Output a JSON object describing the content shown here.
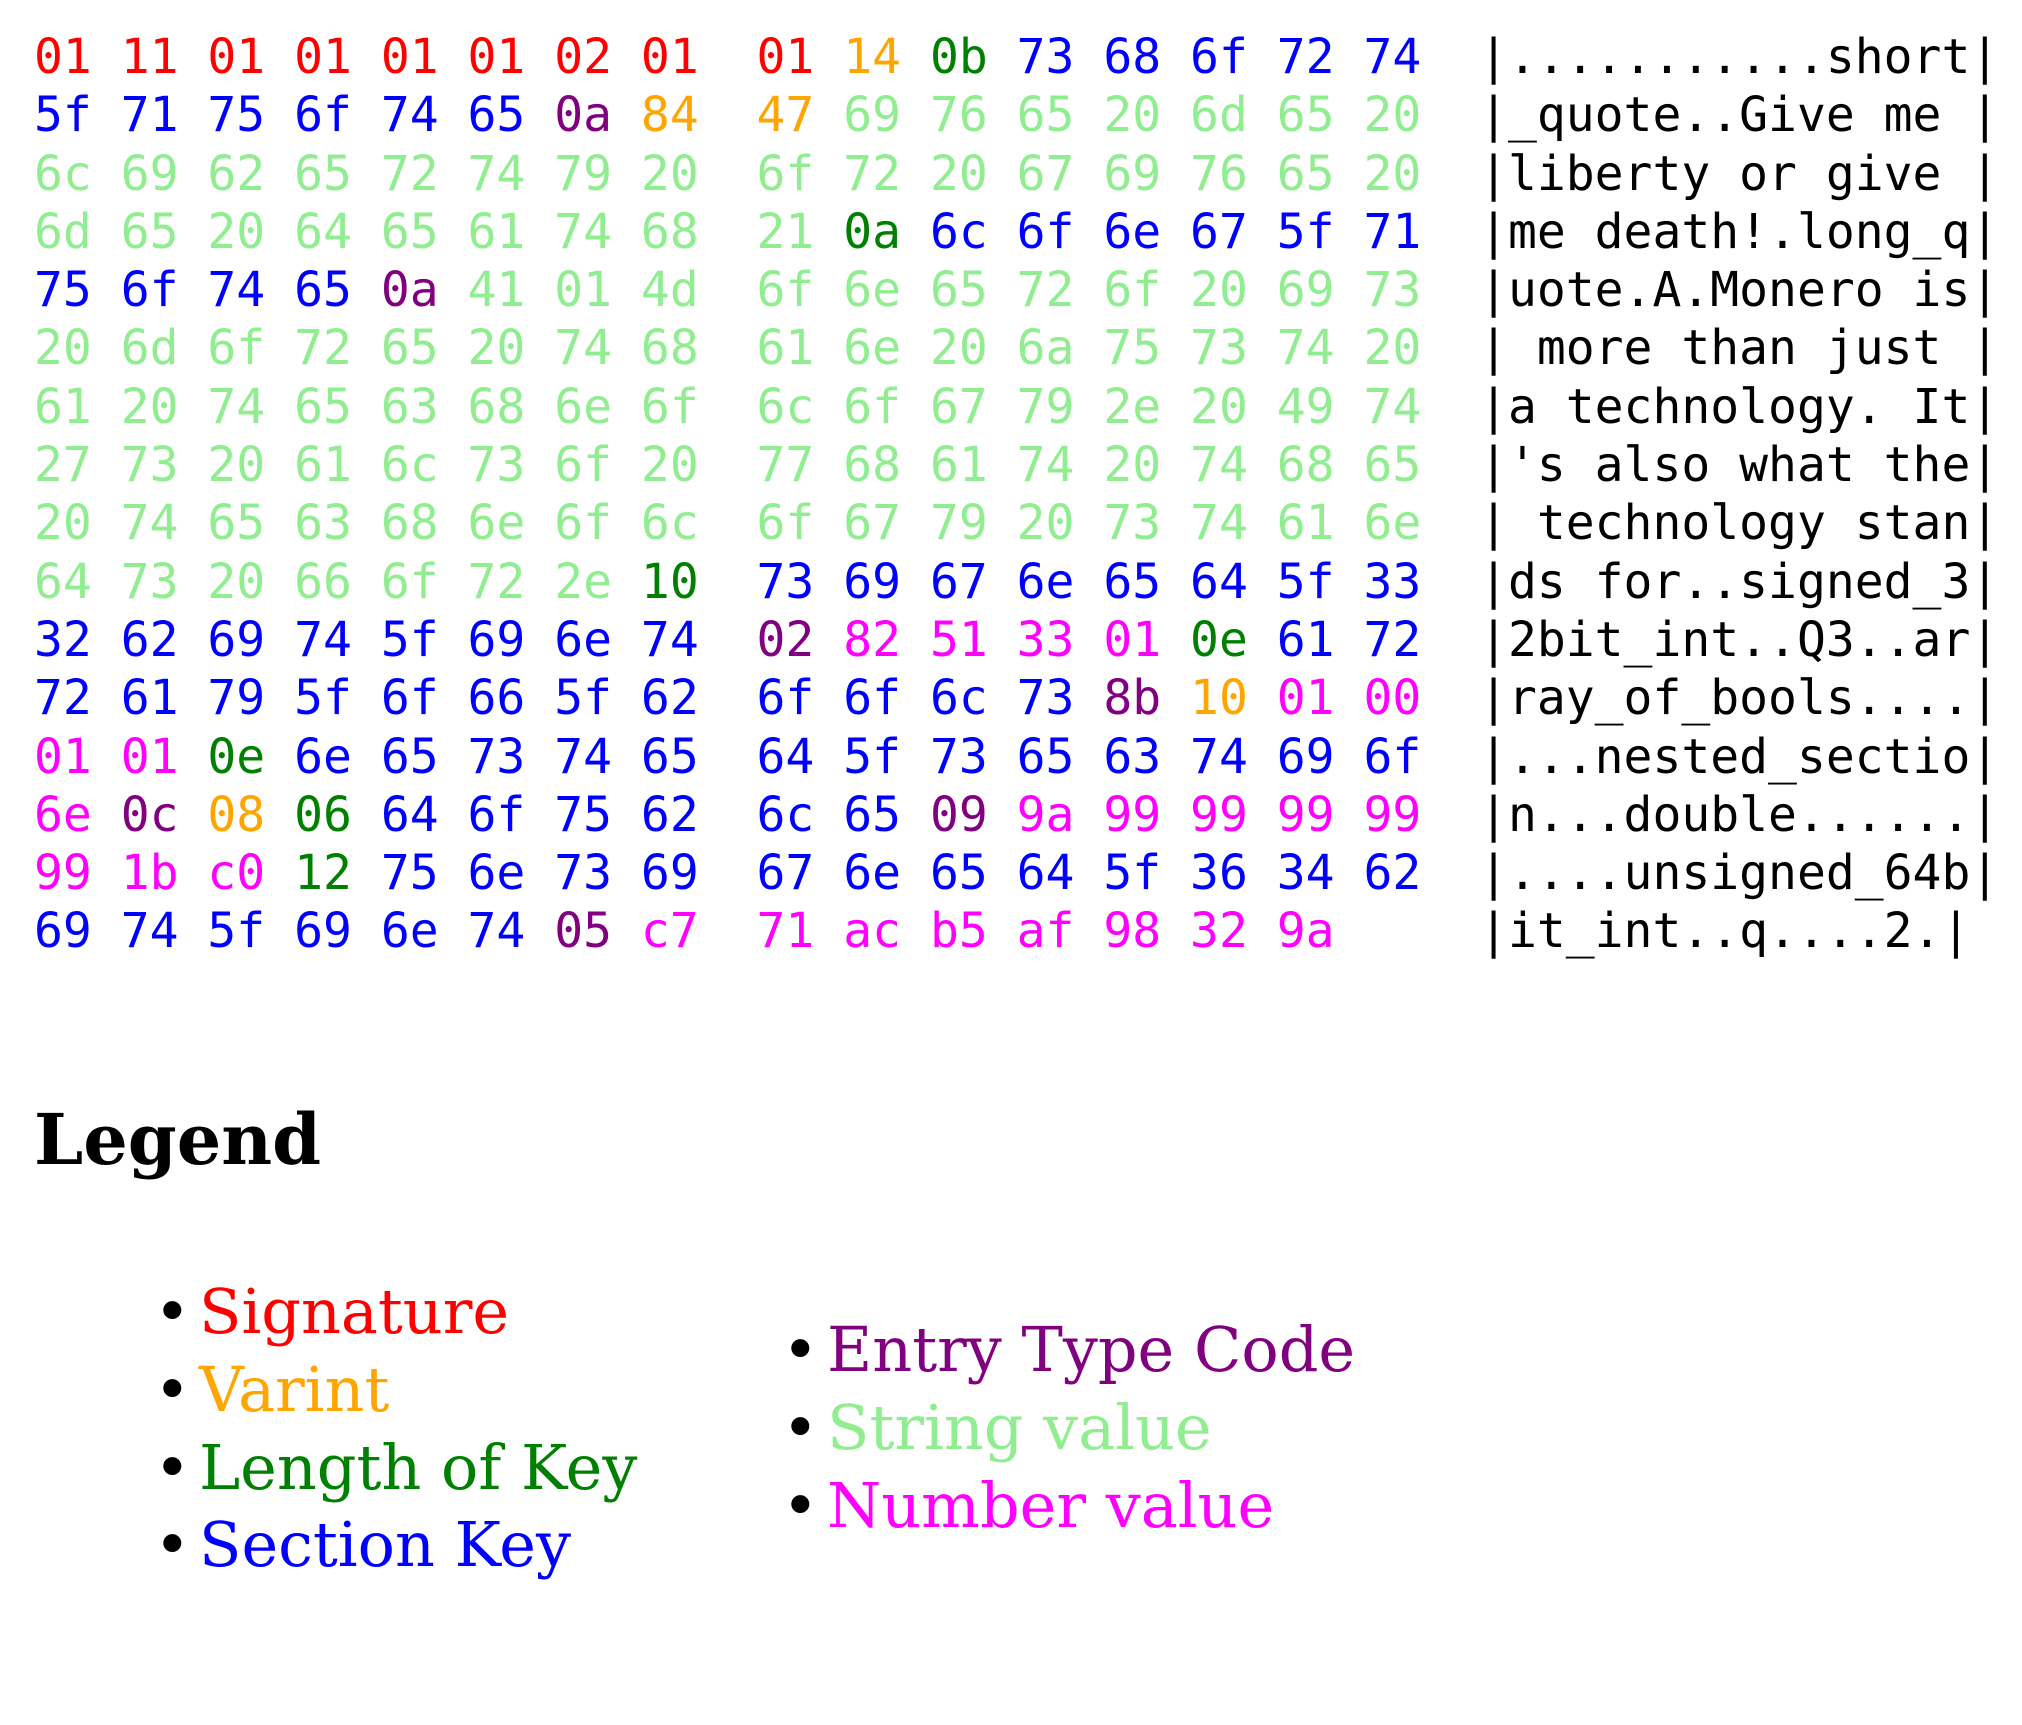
{
  "colors": {
    "s": "#ff0000",
    "v": "#ffa500",
    "k": "#008000",
    "K": "#0000ff",
    "e": "#800080",
    "S": "#90ee90",
    "n": "#ff00ff"
  },
  "type_names": {
    "s": "signature",
    "v": "varint",
    "k": "key-length",
    "K": "section-key",
    "e": "entry-type-code",
    "S": "string-value",
    "n": "number-value"
  },
  "rows": [
    {
      "hex": "01 11 01 01 01 01 02 01 01 14 0b 73 68 6f 72 74",
      "types": "sssssssssvkKKKKK",
      "ascii": "|...........short|"
    },
    {
      "hex": "5f 71 75 6f 74 65 0a 84 47 69 76 65 20 6d 65 20",
      "types": "KKKKKKevvSSSSSSS",
      "ascii": "|_quote..Give me |"
    },
    {
      "hex": "6c 69 62 65 72 74 79 20 6f 72 20 67 69 76 65 20",
      "types": "SSSSSSSSSSSSSSSS",
      "ascii": "|liberty or give |"
    },
    {
      "hex": "6d 65 20 64 65 61 74 68 21 0a 6c 6f 6e 67 5f 71",
      "types": "SSSSSSSSSkKKKKKK",
      "ascii": "|me death!.long_q|"
    },
    {
      "hex": "75 6f 74 65 0a 41 01 4d 6f 6e 65 72 6f 20 69 73",
      "types": "KKKKeSSSSSSSSSSS",
      "ascii": "|uote.A.Monero is|"
    },
    {
      "hex": "20 6d 6f 72 65 20 74 68 61 6e 20 6a 75 73 74 20",
      "types": "SSSSSSSSSSSSSSSS",
      "ascii": "| more than just |"
    },
    {
      "hex": "61 20 74 65 63 68 6e 6f 6c 6f 67 79 2e 20 49 74",
      "types": "SSSSSSSSSSSSSSSS",
      "ascii": "|a technology. It|"
    },
    {
      "hex": "27 73 20 61 6c 73 6f 20 77 68 61 74 20 74 68 65",
      "types": "SSSSSSSSSSSSSSSS",
      "ascii": "|'s also what the|"
    },
    {
      "hex": "20 74 65 63 68 6e 6f 6c 6f 67 79 20 73 74 61 6e",
      "types": "SSSSSSSSSSSSSSSS",
      "ascii": "| technology stan|"
    },
    {
      "hex": "64 73 20 66 6f 72 2e 10 73 69 67 6e 65 64 5f 33",
      "types": "SSSSSSSkKKKKKKKK",
      "ascii": "|ds for..signed_3|"
    },
    {
      "hex": "32 62 69 74 5f 69 6e 74 02 82 51 33 01 0e 61 72",
      "types": "KKKKKKKKennnnkKK",
      "ascii": "|2bit_int..Q3..ar|"
    },
    {
      "hex": "72 61 79 5f 6f 66 5f 62 6f 6f 6c 73 8b 10 01 00",
      "types": "KKKKKKKKKKKKevnn",
      "ascii": "|ray_of_bools....|"
    },
    {
      "hex": "01 01 0e 6e 65 73 74 65 64 5f 73 65 63 74 69 6f",
      "types": "nnkKKKKKKKKKKKKK",
      "ascii": "|...nested_sectio|"
    },
    {
      "hex": "6e 0c 08 06 64 6f 75 62 6c 65 09 9a 99 99 99 99",
      "types": "nevkKKKKKKennnnn",
      "ascii": "|n...double......|"
    },
    {
      "hex": "99 1b c0 12 75 6e 73 69 67 6e 65 64 5f 36 34 62",
      "types": "nnnkKKKKKKKKKKKK",
      "ascii": "|....unsigned_64b|"
    },
    {
      "hex": "69 74 5f 69 6e 74 05 c7 71 ac b5 af 98 32 9a",
      "types": "KKKKKKennnnnnnn",
      "ascii": "|it_int..q....2.|"
    }
  ],
  "legend": {
    "title": "Legend",
    "left": [
      {
        "label": "Signature",
        "type": "s"
      },
      {
        "label": "Varint",
        "type": "v"
      },
      {
        "label": "Length of Key",
        "type": "k"
      },
      {
        "label": "Section Key",
        "type": "K"
      }
    ],
    "right": [
      {
        "label": "Entry Type Code",
        "type": "e"
      },
      {
        "label": "String value",
        "type": "S"
      },
      {
        "label": "Number value",
        "type": "n"
      }
    ]
  }
}
